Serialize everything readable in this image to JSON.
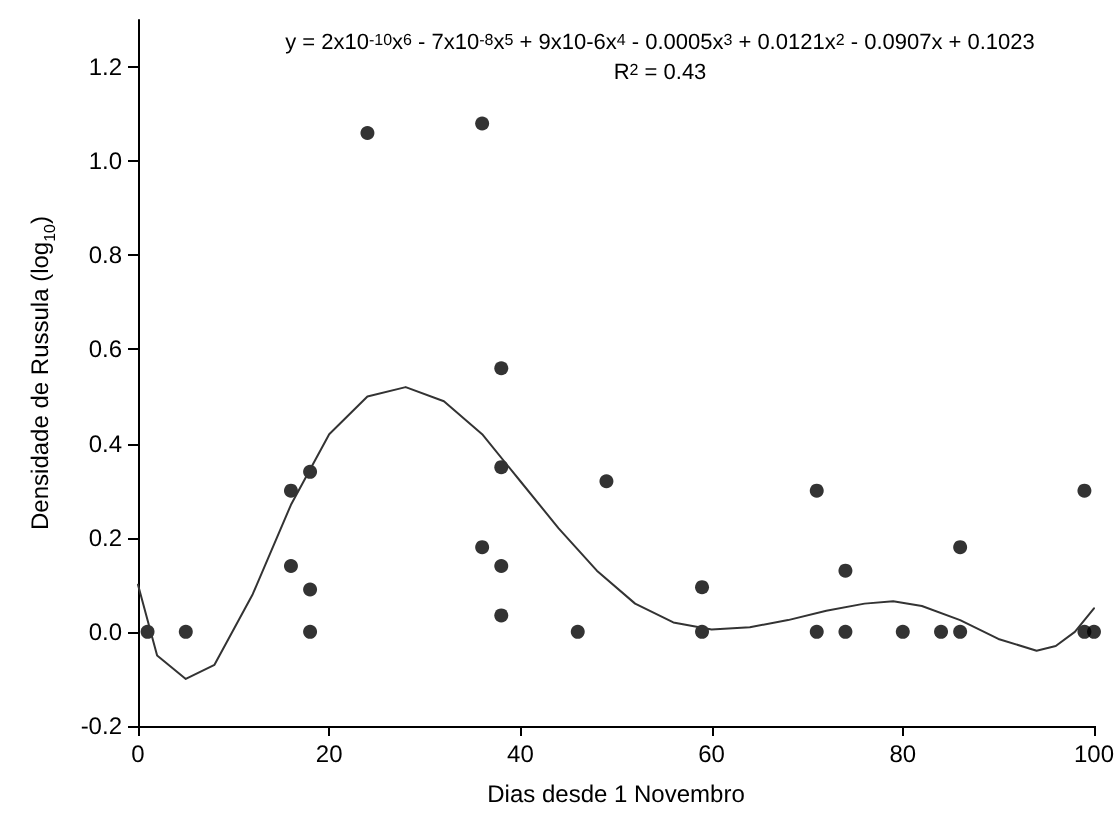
{
  "chart_data": {
    "type": "scatter",
    "xlabel": "Dias desde 1 Novembro",
    "ylabel": "Densidade de Russula (log$_{10}$)",
    "annotations": [
      "y = 2x10$^{-10}$x$^{6}$ - 7x10$^{-8}$x$^{5}$ + 9x10-6x$^{4}$ - 0.0005x$^{3}$ + 0.0121x$^{2}$ - 0.0907x + 0.1023",
      "R$^{2}$ = 0.43"
    ],
    "xlim": [
      0,
      100
    ],
    "xticks": [
      0,
      20,
      40,
      60,
      80,
      100
    ],
    "ylim": [
      -0.2,
      1.3
    ],
    "yticks": [
      -0.2,
      {
        "value": 0,
        "label": "0.0"
      },
      0.2,
      0.4,
      0.6,
      0.8,
      {
        "value": 1,
        "label": "1.0"
      },
      1.2
    ],
    "grid": false,
    "marker": "circle",
    "series": [
      {
        "color": "#000000",
        "x": [
          1,
          5,
          16,
          16,
          18,
          18,
          18,
          24,
          36,
          36,
          38,
          38,
          38,
          38,
          46,
          49,
          59,
          59,
          71,
          71,
          74,
          74,
          80,
          84,
          86,
          86,
          99,
          99,
          100
        ],
        "values": [
          0,
          0,
          0.3,
          0.14,
          0.34,
          0.09,
          0,
          1.06,
          1.08,
          0.18,
          0.56,
          0.35,
          0.14,
          0.035,
          0,
          0.32,
          0.095,
          0,
          0.3,
          0,
          0.13,
          0,
          0,
          0,
          0.18,
          0,
          0.3,
          0,
          0
        ]
      },
      {
        "type": "line",
        "color": "#333333",
        "marker": "none",
        "line_style": "solid",
        "x": [
          0,
          2,
          5,
          8,
          12,
          16,
          20,
          24,
          28,
          32,
          36,
          40,
          44,
          48,
          52,
          56,
          60,
          64,
          68,
          72,
          76,
          79,
          82,
          86,
          90,
          94,
          96,
          98,
          100
        ],
        "values": [
          0.1,
          -0.05,
          -0.1,
          -0.07,
          0.08,
          0.27,
          0.42,
          0.5,
          0.52,
          0.49,
          0.42,
          0.32,
          0.22,
          0.13,
          0.06,
          0.02,
          0.005,
          0.01,
          0.025,
          0.045,
          0.06,
          0.065,
          0.055,
          0.025,
          -0.015,
          -0.04,
          -0.03,
          0.0,
          0.05
        ]
      }
    ]
  }
}
